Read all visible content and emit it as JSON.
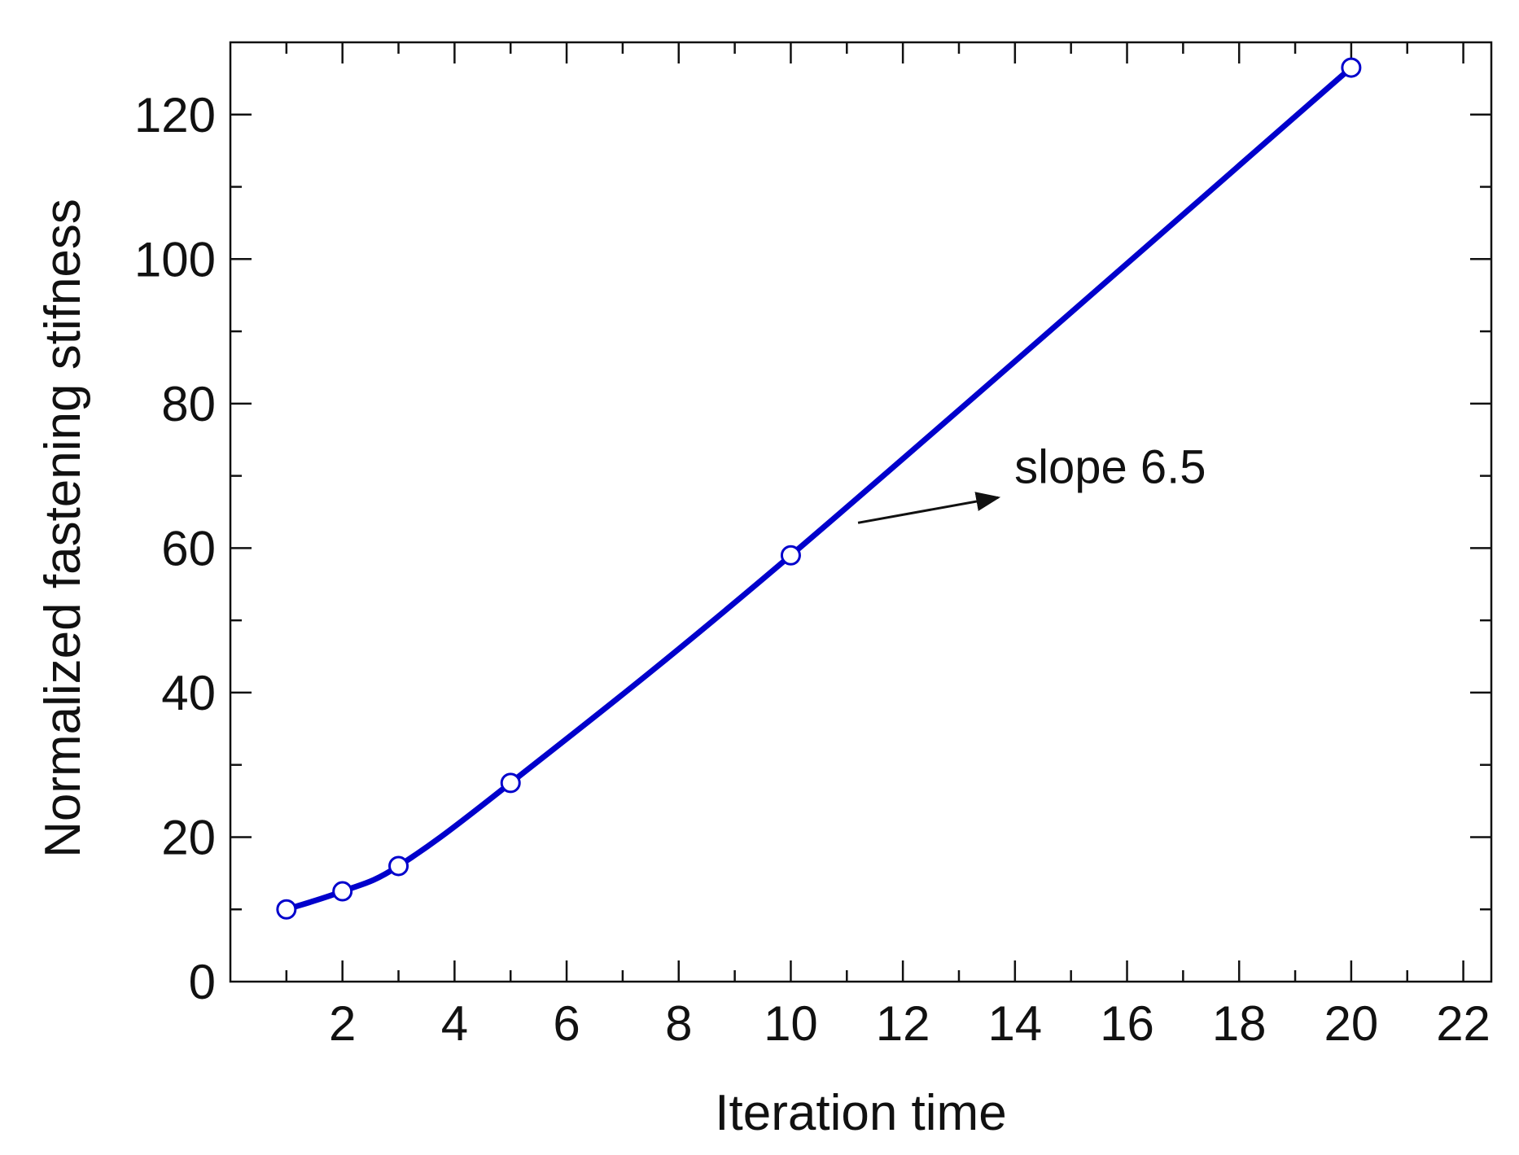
{
  "chart_data": {
    "type": "line",
    "title": "",
    "xlabel": "Iteration time",
    "ylabel": "Normalized fastening stifness",
    "xlim": [
      0,
      22.5
    ],
    "ylim": [
      0,
      130
    ],
    "x_ticks": [
      2,
      4,
      6,
      8,
      10,
      12,
      14,
      16,
      18,
      20,
      22
    ],
    "y_ticks": [
      0,
      20,
      40,
      60,
      80,
      100,
      120
    ],
    "x_minor_step": 1,
    "y_minor_step": 10,
    "grid": false,
    "legend": "none",
    "series": [
      {
        "x": [
          1,
          2,
          3,
          5,
          10,
          20
        ],
        "y": [
          10,
          12.5,
          16,
          27.5,
          59,
          126.5
        ],
        "color": "#0000cc",
        "marker": "open-circle"
      }
    ],
    "annotations": [
      {
        "text": "slope 6.5",
        "x": 15.7,
        "y": 69,
        "arrow_from": [
          11.2,
          63.5
        ],
        "arrow_to": [
          13.7,
          67
        ]
      }
    ]
  }
}
